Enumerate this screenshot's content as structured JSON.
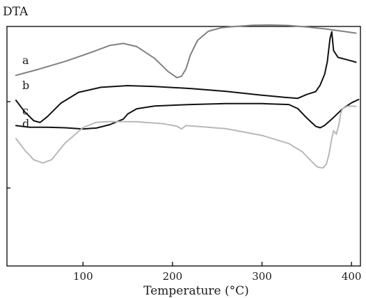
{
  "chart_data": {
    "type": "line",
    "title": "",
    "ylabel": "DTA",
    "xlabel": "Temperature (°C)",
    "xlim": [
      15,
      410
    ],
    "ylim": [
      0,
      100
    ],
    "xticks": [
      100,
      200,
      300,
      400
    ],
    "yaxis_ticks_labeled": false,
    "grid": false,
    "series": [
      {
        "name": "a",
        "color": "#808080",
        "x": [
          25,
          50,
          80,
          110,
          130,
          145,
          160,
          180,
          195,
          205,
          210,
          215,
          220,
          228,
          240,
          255,
          270,
          290,
          310,
          330,
          350,
          370,
          390,
          405
        ],
        "y": [
          79.6,
          82.1,
          85.4,
          89.3,
          92.1,
          92.9,
          91.6,
          86.7,
          81.2,
          78.6,
          79.2,
          82.2,
          88.1,
          94.2,
          98.0,
          99.5,
          100.0,
          100.5,
          100.6,
          100.4,
          99.8,
          99.0,
          98.0,
          97.2
        ]
      },
      {
        "name": "b",
        "color": "#111111",
        "x": [
          25,
          35,
          45,
          52,
          60,
          75,
          95,
          120,
          150,
          180,
          220,
          260,
          300,
          325,
          340,
          350,
          360,
          365,
          370,
          373,
          375,
          376,
          378,
          380,
          385,
          395,
          405
        ],
        "y": [
          69.2,
          64.3,
          60.6,
          59.9,
          62.3,
          67.9,
          72.5,
          74.6,
          75.3,
          74.9,
          74.1,
          72.9,
          71.3,
          70.4,
          70.0,
          71.6,
          72.8,
          75.5,
          80.1,
          85.3,
          91.8,
          95.0,
          97.8,
          89.9,
          87.1,
          86.1,
          85.1
        ]
      },
      {
        "name": "c",
        "color": "#111111",
        "x": [
          25,
          40,
          60,
          80,
          100,
          115,
          130,
          145,
          150,
          160,
          180,
          220,
          260,
          300,
          330,
          340,
          350,
          360,
          365,
          370,
          380,
          390,
          400,
          408
        ],
        "y": [
          58.6,
          57.9,
          57.9,
          57.7,
          57.2,
          57.6,
          59.0,
          61.3,
          63.5,
          65.6,
          66.8,
          67.4,
          67.8,
          67.8,
          67.4,
          65.7,
          61.8,
          58.3,
          57.7,
          58.7,
          62.0,
          65.6,
          68.1,
          69.5
        ]
      },
      {
        "name": "d",
        "color": "#b8b8b8",
        "x": [
          25,
          35,
          45,
          55,
          65,
          80,
          100,
          115,
          130,
          160,
          190,
          205,
          210,
          215,
          230,
          260,
          300,
          330,
          345,
          355,
          362,
          368,
          372,
          375,
          378,
          380,
          383,
          386,
          388,
          390,
          395,
          400,
          405
        ],
        "y": [
          53.2,
          48.3,
          44.3,
          43.0,
          44.4,
          51.3,
          57.8,
          60.0,
          60.3,
          60.2,
          59.4,
          58.3,
          57.2,
          58.6,
          58.2,
          57.3,
          54.5,
          51.1,
          47.7,
          43.8,
          41.3,
          40.9,
          42.6,
          46.9,
          53.2,
          56.5,
          55.0,
          59.1,
          63.9,
          65.6,
          66.6,
          66.8,
          66.6
        ]
      }
    ]
  }
}
